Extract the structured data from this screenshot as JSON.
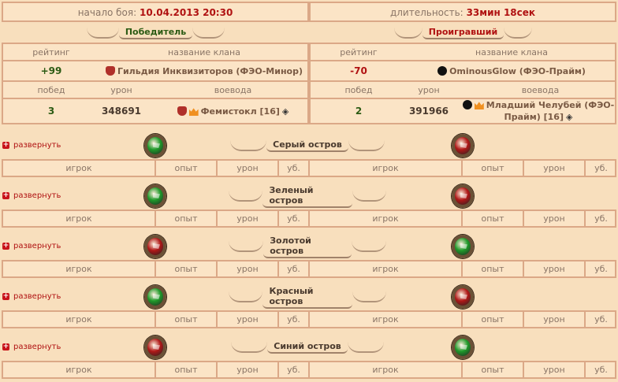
{
  "battle": {
    "start_label": "начало боя:",
    "start_value": "10.04.2013 20:30",
    "duration_label": "длительность:",
    "duration_value": "33мин 18сек"
  },
  "winner": {
    "title": "Победитель",
    "rating_header": "рейтинг",
    "clan_header": "название клана",
    "rating": "+99",
    "clan": "Гильдия Инквизиторов (ФЭО-Минор)",
    "wins_header": "побед",
    "damage_header": "урон",
    "leader_header": "воевода",
    "wins": "3",
    "damage": "348691",
    "leader": "Фемистокл [16]"
  },
  "loser": {
    "title": "Проигравший",
    "rating_header": "рейтинг",
    "clan_header": "название клана",
    "rating": "-70",
    "clan": "OminousGlow (ФЭО-Прайм)",
    "wins_header": "побед",
    "damage_header": "урон",
    "leader_header": "воевода",
    "wins": "2",
    "damage": "391966",
    "leader": "Младший Челубей (ФЭО-Прайм) [16]"
  },
  "colors": {
    "accent_red": "#b01212",
    "accent_green": "#2c5b14",
    "flag_green": "#1f9a2a",
    "flag_red": "#b01818"
  },
  "expand_label": "развернуть",
  "columns": [
    "игрок",
    "опыт",
    "урон",
    "уб."
  ],
  "islands": [
    {
      "name": "Серый остров",
      "left_flag": "green",
      "right_flag": "red"
    },
    {
      "name": "Зеленый остров",
      "left_flag": "green",
      "right_flag": "red"
    },
    {
      "name": "Золотой остров",
      "left_flag": "red",
      "right_flag": "green"
    },
    {
      "name": "Красный остров",
      "left_flag": "green",
      "right_flag": "red"
    },
    {
      "name": "Синий остров",
      "left_flag": "red",
      "right_flag": "green"
    }
  ]
}
